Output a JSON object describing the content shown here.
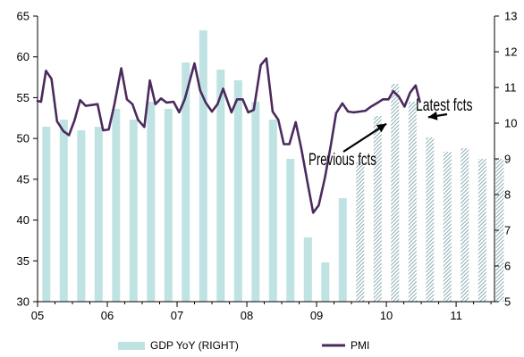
{
  "chart_data": {
    "type": "bar+line",
    "x_tick_labels": [
      "05",
      "06",
      "07",
      "08",
      "09",
      "10",
      "11"
    ],
    "x_range": [
      2005.0,
      2011.55
    ],
    "y_left": {
      "ticks": [
        "30",
        "35",
        "40",
        "45",
        "50",
        "55",
        "60",
        "65"
      ],
      "range": [
        30,
        65
      ]
    },
    "y_right": {
      "ticks": [
        "5",
        "6",
        "7",
        "8",
        "9",
        "10",
        "11",
        "12",
        "13"
      ],
      "range": [
        5,
        13
      ]
    },
    "grid": false,
    "legend_position": "bottom",
    "colors": {
      "bars": "#bfe3e3",
      "hatch": "#6f9aa3",
      "line": "#4b2a5e",
      "axis": "#000000"
    },
    "series": [
      {
        "name": "GDP YoY (RIGHT)",
        "type": "bar",
        "axis": "right",
        "data": [
          {
            "x": 2005.125,
            "y": 9.9,
            "f": false
          },
          {
            "x": 2005.375,
            "y": 10.1,
            "f": false
          },
          {
            "x": 2005.625,
            "y": 9.8,
            "f": false
          },
          {
            "x": 2005.875,
            "y": 9.9,
            "f": false
          },
          {
            "x": 2006.125,
            "y": 10.4,
            "f": false
          },
          {
            "x": 2006.375,
            "y": 10.1,
            "f": false
          },
          {
            "x": 2006.625,
            "y": 10.6,
            "f": false
          },
          {
            "x": 2006.875,
            "y": 10.4,
            "f": false
          },
          {
            "x": 2007.125,
            "y": 11.7,
            "f": false
          },
          {
            "x": 2007.375,
            "y": 12.6,
            "f": false
          },
          {
            "x": 2007.625,
            "y": 11.5,
            "f": false
          },
          {
            "x": 2007.875,
            "y": 11.2,
            "f": false
          },
          {
            "x": 2008.125,
            "y": 10.6,
            "f": false
          },
          {
            "x": 2008.375,
            "y": 10.1,
            "f": false
          },
          {
            "x": 2008.625,
            "y": 9.0,
            "f": false
          },
          {
            "x": 2008.875,
            "y": 6.8,
            "f": false
          },
          {
            "x": 2009.125,
            "y": 6.1,
            "f": false
          },
          {
            "x": 2009.375,
            "y": 7.9,
            "f": false
          },
          {
            "x": 2009.625,
            "y": 8.9,
            "f": true
          },
          {
            "x": 2009.875,
            "y": 10.2,
            "f": true
          },
          {
            "x": 2010.125,
            "y": 11.1,
            "f": true
          },
          {
            "x": 2010.375,
            "y": 10.6,
            "f": true
          },
          {
            "x": 2010.625,
            "y": 9.6,
            "f": true
          },
          {
            "x": 2010.875,
            "y": 9.2,
            "f": true
          },
          {
            "x": 2011.125,
            "y": 9.3,
            "f": true
          },
          {
            "x": 2011.375,
            "y": 9.0,
            "f": true
          },
          {
            "x": 2011.625,
            "y": 9.0,
            "f": true
          }
        ]
      },
      {
        "name": "PMI",
        "type": "line",
        "axis": "left",
        "data": [
          [
            2005.0,
            54.6
          ],
          [
            2005.05,
            54.5
          ],
          [
            2005.12,
            58.3
          ],
          [
            2005.2,
            57.3
          ],
          [
            2005.28,
            52.1
          ],
          [
            2005.37,
            50.9
          ],
          [
            2005.45,
            50.4
          ],
          [
            2005.53,
            52.2
          ],
          [
            2005.61,
            54.7
          ],
          [
            2005.69,
            54.0
          ],
          [
            2005.77,
            54.1
          ],
          [
            2005.86,
            54.2
          ],
          [
            2005.94,
            51.0
          ],
          [
            2006.02,
            51.1
          ],
          [
            2006.1,
            54.1
          ],
          [
            2006.2,
            58.6
          ],
          [
            2006.28,
            54.8
          ],
          [
            2006.36,
            54.2
          ],
          [
            2006.44,
            52.3
          ],
          [
            2006.53,
            51.4
          ],
          [
            2006.61,
            57.1
          ],
          [
            2006.69,
            54.2
          ],
          [
            2006.77,
            54.9
          ],
          [
            2006.85,
            54.4
          ],
          [
            2006.95,
            54.5
          ],
          [
            2007.03,
            53.2
          ],
          [
            2007.11,
            54.8
          ],
          [
            2007.25,
            59.2
          ],
          [
            2007.33,
            55.9
          ],
          [
            2007.41,
            54.4
          ],
          [
            2007.5,
            53.3
          ],
          [
            2007.58,
            54.2
          ],
          [
            2007.66,
            56.1
          ],
          [
            2007.78,
            53.2
          ],
          [
            2007.86,
            54.8
          ],
          [
            2007.94,
            54.8
          ],
          [
            2008.02,
            53.2
          ],
          [
            2008.1,
            53.5
          ],
          [
            2008.2,
            59.0
          ],
          [
            2008.28,
            59.8
          ],
          [
            2008.37,
            53.3
          ],
          [
            2008.45,
            52.3
          ],
          [
            2008.53,
            49.3
          ],
          [
            2008.61,
            49.3
          ],
          [
            2008.7,
            52.0
          ],
          [
            2008.78,
            48.8
          ],
          [
            2008.87,
            44.6
          ],
          [
            2008.95,
            40.9
          ],
          [
            2009.03,
            41.8
          ],
          [
            2009.12,
            45.2
          ],
          [
            2009.2,
            49.0
          ],
          [
            2009.28,
            53.1
          ],
          [
            2009.37,
            54.3
          ],
          [
            2009.45,
            53.3
          ],
          [
            2009.53,
            53.2
          ],
          [
            2009.62,
            53.3
          ],
          [
            2009.7,
            53.4
          ],
          [
            2009.78,
            53.9
          ],
          [
            2009.86,
            54.3
          ],
          [
            2009.95,
            54.8
          ],
          [
            2010.03,
            54.8
          ],
          [
            2010.1,
            55.8
          ],
          [
            2010.18,
            55.1
          ],
          [
            2010.26,
            53.9
          ],
          [
            2010.34,
            55.6
          ],
          [
            2010.42,
            56.5
          ],
          [
            2010.48,
            54.5
          ]
        ]
      }
    ],
    "annotations": [
      {
        "text": "Latest fcts",
        "arrow_to": [
          2010.6,
          52.6
        ]
      },
      {
        "text": "Previous fcts",
        "arrow_to": [
          2010.0,
          51.8
        ]
      }
    ]
  }
}
